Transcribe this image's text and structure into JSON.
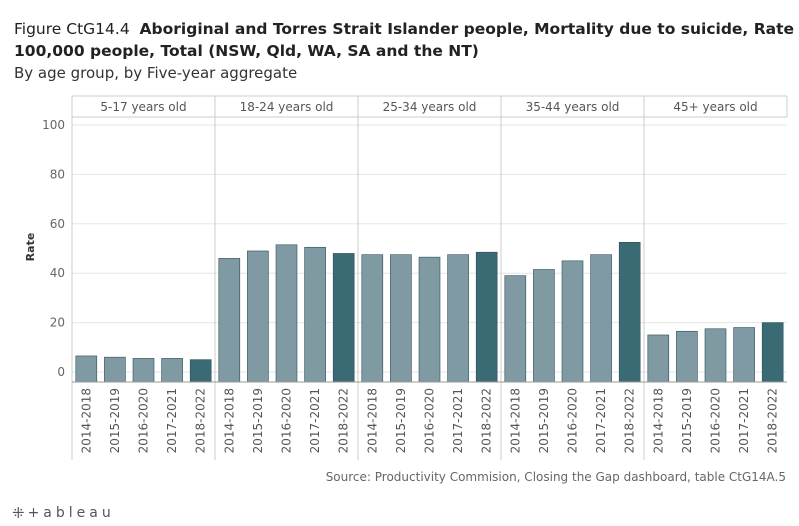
{
  "title": {
    "prefix": "Figure CtG14.4",
    "line1": "Aboriginal and Torres Strait Islander people, Mortality due to suicide, Rate per",
    "line2": "100,000 people, Total (NSW, Qld, WA, SA and the NT)",
    "subtitle": "By age group, by Five-year aggregate"
  },
  "source": "Source: Productivity Commision, Closing the Gap dashboard, table CtG14A.5",
  "logo": {
    "mark": "⁜",
    "text": "+ableau"
  },
  "colors": {
    "bar": "#7f9aa3",
    "bar_highlight": "#3a6b75",
    "grid": "#e6e6e6",
    "panel_border": "#cccccc"
  },
  "chart_data": {
    "type": "bar",
    "title": "Aboriginal and Torres Strait Islander people, Mortality due to suicide, Rate per 100,000 people, Total (NSW, Qld, WA, SA and the NT)",
    "ylabel": "Rate",
    "xlabel": "",
    "ylim": [
      0,
      100
    ],
    "yticks": [
      0,
      20,
      40,
      60,
      80,
      100
    ],
    "categories": [
      "2014-2018",
      "2015-2019",
      "2016-2020",
      "2017-2021",
      "2018-2022"
    ],
    "highlight_category": "2018-2022",
    "groups": [
      {
        "name": "5-17 years old",
        "values": [
          6.5,
          6.0,
          5.5,
          5.5,
          5.0
        ]
      },
      {
        "name": "18-24 years old",
        "values": [
          46.0,
          49.0,
          51.5,
          50.5,
          48.0
        ]
      },
      {
        "name": "25-34 years old",
        "values": [
          47.5,
          47.5,
          46.5,
          47.5,
          48.5
        ]
      },
      {
        "name": "35-44 years old",
        "values": [
          39.0,
          41.5,
          45.0,
          47.5,
          52.5
        ]
      },
      {
        "name": "45+ years old",
        "values": [
          15.0,
          16.5,
          17.5,
          18.0,
          20.0
        ]
      }
    ]
  }
}
